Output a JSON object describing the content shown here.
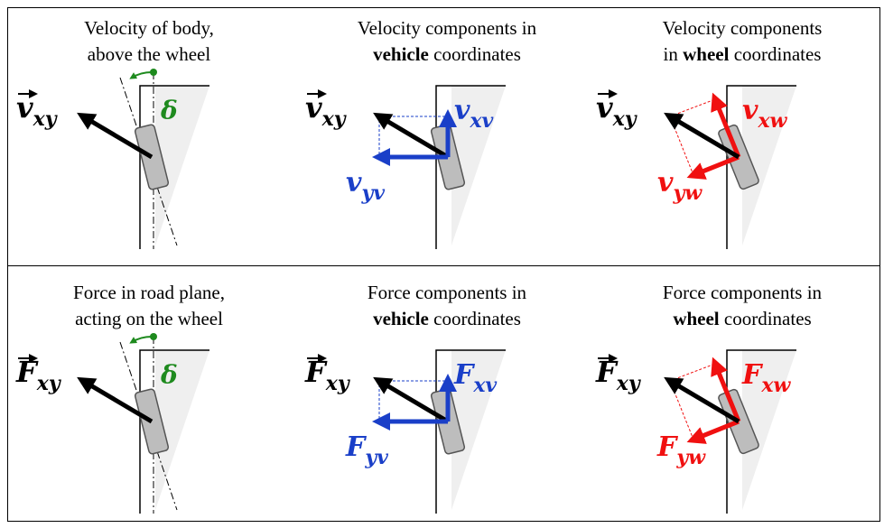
{
  "panels": [
    {
      "title": [
        [
          {
            "text": "Velocity of body,"
          }
        ],
        [
          {
            "text": "above the wheel"
          }
        ]
      ],
      "vector": {
        "symbol": "v",
        "subscript": "xy"
      },
      "angle": "δ"
    },
    {
      "title": [
        [
          {
            "text": "Velocity components in"
          }
        ],
        [
          {
            "text": "vehicle",
            "bold": true
          },
          {
            "text": " coordinates"
          }
        ]
      ],
      "vector": {
        "symbol": "v",
        "subscript": "xy"
      },
      "components": [
        {
          "symbol": "v",
          "subscript": "xv"
        },
        {
          "symbol": "v",
          "subscript": "yv"
        }
      ]
    },
    {
      "title": [
        [
          {
            "text": "Velocity components"
          }
        ],
        [
          {
            "text": "in "
          },
          {
            "text": "wheel",
            "bold": true
          },
          {
            "text": " coordinates"
          }
        ]
      ],
      "vector": {
        "symbol": "v",
        "subscript": "xy"
      },
      "components": [
        {
          "symbol": "v",
          "subscript": "xw"
        },
        {
          "symbol": "v",
          "subscript": "yw"
        }
      ]
    },
    {
      "title": [
        [
          {
            "text": "Force in road plane,"
          }
        ],
        [
          {
            "text": "acting on the wheel"
          }
        ]
      ],
      "vector": {
        "symbol": "F",
        "subscript": "xy"
      },
      "angle": "δ"
    },
    {
      "title": [
        [
          {
            "text": "Force components in"
          }
        ],
        [
          {
            "text": "vehicle",
            "bold": true
          },
          {
            "text": " coordinates"
          }
        ]
      ],
      "vector": {
        "symbol": "F",
        "subscript": "xy"
      },
      "components": [
        {
          "symbol": "F",
          "subscript": "xv"
        },
        {
          "symbol": "F",
          "subscript": "yv"
        }
      ]
    },
    {
      "title": [
        [
          {
            "text": "Force components in"
          }
        ],
        [
          {
            "text": "wheel",
            "bold": true
          },
          {
            "text": " coordinates"
          }
        ]
      ],
      "vector": {
        "symbol": "F",
        "subscript": "xy"
      },
      "components": [
        {
          "symbol": "F",
          "subscript": "xw"
        },
        {
          "symbol": "F",
          "subscript": "yw"
        }
      ]
    }
  ]
}
